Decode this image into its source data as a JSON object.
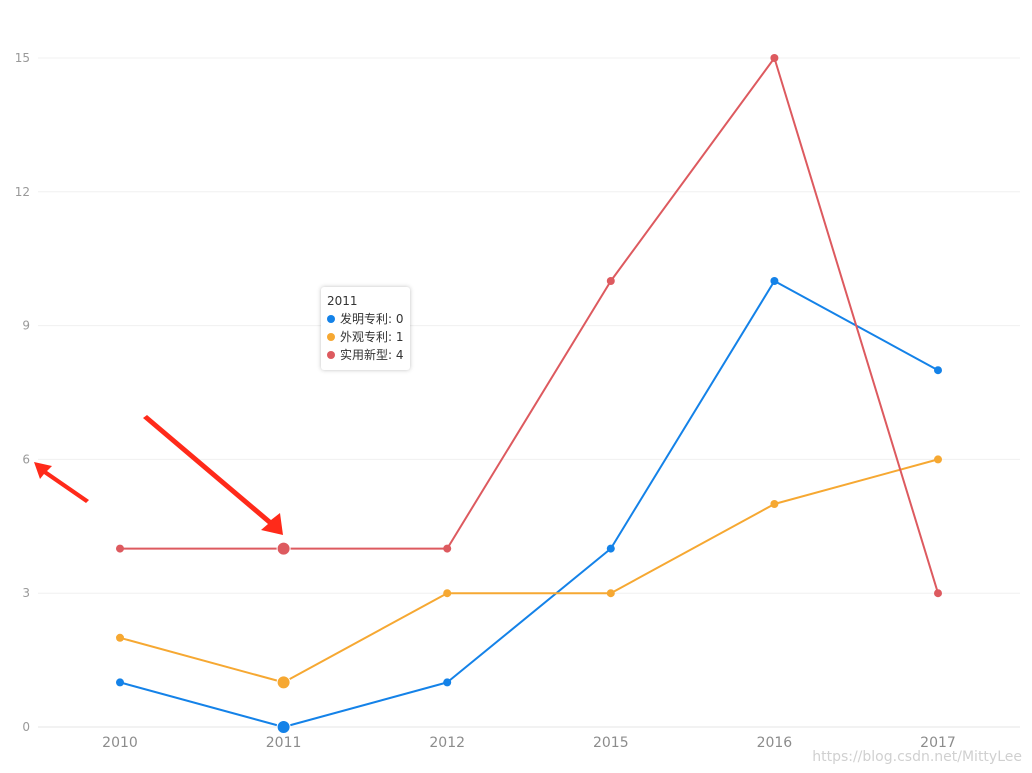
{
  "chart_data": {
    "type": "line",
    "categories": [
      "2010",
      "2011",
      "2012",
      "2015",
      "2016",
      "2017"
    ],
    "series": [
      {
        "name": "发明专利",
        "color": "#1482e8",
        "values": [
          1,
          0,
          1,
          4,
          10,
          8
        ]
      },
      {
        "name": "外观专利",
        "color": "#f6a832",
        "values": [
          2,
          1,
          3,
          3,
          5,
          6
        ]
      },
      {
        "name": "实用新型",
        "color": "#dd5a5f",
        "values": [
          4,
          4,
          4,
          10,
          15,
          3
        ]
      }
    ],
    "ylim": [
      0,
      15
    ],
    "yticks": [
      0,
      3,
      6,
      9,
      12,
      15
    ],
    "grid": true,
    "highlight_index": 1
  },
  "tooltip": {
    "title": "2011",
    "rows": [
      {
        "label": "发明专利: 0",
        "color": "#1482e8"
      },
      {
        "label": "外观专利: 1",
        "color": "#f6a832"
      },
      {
        "label": "实用新型: 4",
        "color": "#dd5a5f"
      }
    ]
  },
  "annotation_color": "#ff2a1a",
  "watermark": "https://blog.csdn.net/MittyLee"
}
